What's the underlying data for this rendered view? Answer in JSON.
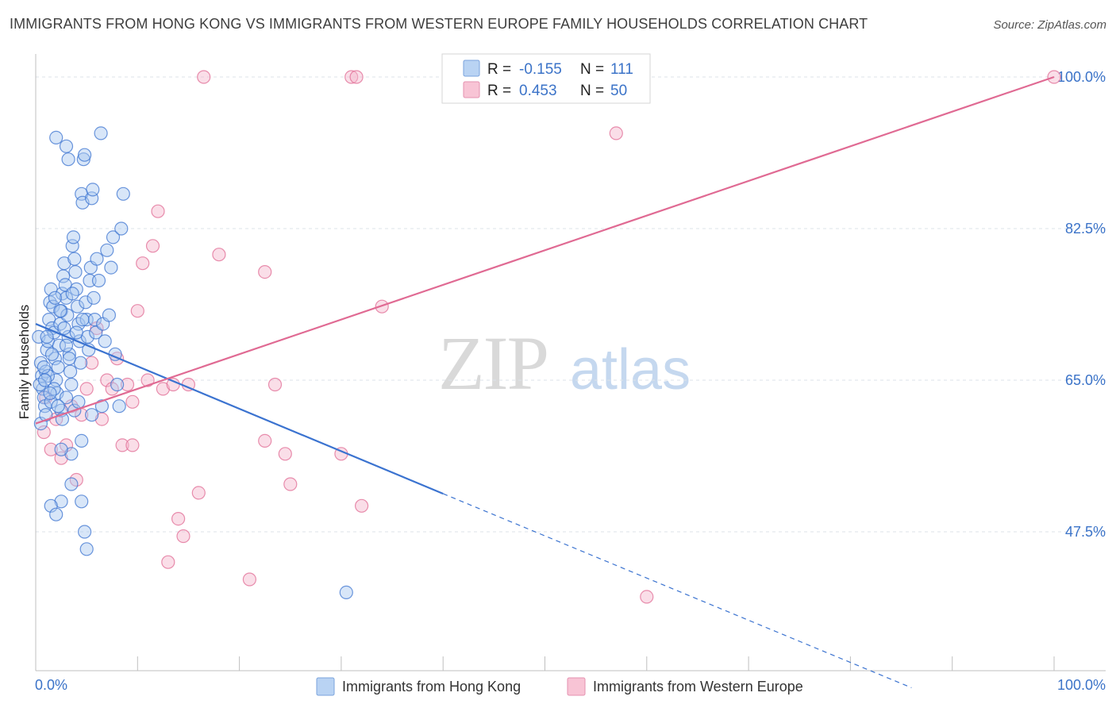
{
  "title": "IMMIGRANTS FROM HONG KONG VS IMMIGRANTS FROM WESTERN EUROPE FAMILY HOUSEHOLDS CORRELATION CHART",
  "source": "Source: ZipAtlas.com",
  "watermark": {
    "zip": "ZIP",
    "atlas": "atlas"
  },
  "colors": {
    "blue": "#3b73d0",
    "blue_fill": "#a9c8f0",
    "pink": "#e06a93",
    "pink_fill": "#f4b6cb",
    "grid": "#dde3ea",
    "tick": "#3b73c8"
  },
  "stats": {
    "r_label": "R =",
    "n_label": "N =",
    "blue": {
      "r": "-0.155",
      "n": "111"
    },
    "pink": {
      "r": "0.453",
      "n": "50"
    }
  },
  "chart_data": {
    "type": "scatter",
    "title": "IMMIGRANTS FROM HONG KONG VS IMMIGRANTS FROM WESTERN EUROPE FAMILY HOUSEHOLDS CORRELATION CHART",
    "xlabel": "",
    "ylabel": "Family Households",
    "xlim": [
      0,
      100
    ],
    "ylim": [
      30.0,
      102.5
    ],
    "x_tick_labels": [
      "0.0%",
      "100.0%"
    ],
    "y_ticks": [
      47.5,
      65.0,
      82.5,
      100.0
    ],
    "y_tick_labels": [
      "47.5%",
      "65.0%",
      "82.5%",
      "100.0%"
    ],
    "grid": true,
    "legend_position": "bottom",
    "series": [
      {
        "name": "Immigrants from Hong Kong",
        "color": "#3b73d0",
        "trend": {
          "x0": 0,
          "y0": 71.5,
          "x1": 40,
          "y1": 51.9,
          "dash_to_x": 86,
          "dash_to_y": 29.5
        },
        "points": [
          [
            0.3,
            70.0
          ],
          [
            0.5,
            67.0
          ],
          [
            0.6,
            65.5
          ],
          [
            0.7,
            64.0
          ],
          [
            0.8,
            63.0
          ],
          [
            0.9,
            62.0
          ],
          [
            1.0,
            66.0
          ],
          [
            1.1,
            68.5
          ],
          [
            1.2,
            69.5
          ],
          [
            1.3,
            72.0
          ],
          [
            1.4,
            74.0
          ],
          [
            1.5,
            75.5
          ],
          [
            1.6,
            71.0
          ],
          [
            1.7,
            73.5
          ],
          [
            1.8,
            70.5
          ],
          [
            1.9,
            67.5
          ],
          [
            2.0,
            65.0
          ],
          [
            2.1,
            63.5
          ],
          [
            2.2,
            66.5
          ],
          [
            2.3,
            69.0
          ],
          [
            2.4,
            71.5
          ],
          [
            2.5,
            73.0
          ],
          [
            2.6,
            75.0
          ],
          [
            2.7,
            77.0
          ],
          [
            2.8,
            78.5
          ],
          [
            2.9,
            76.0
          ],
          [
            3.0,
            74.5
          ],
          [
            3.1,
            72.5
          ],
          [
            3.2,
            70.0
          ],
          [
            3.3,
            68.0
          ],
          [
            3.4,
            66.0
          ],
          [
            3.5,
            64.5
          ],
          [
            3.6,
            80.5
          ],
          [
            3.7,
            81.5
          ],
          [
            3.8,
            79.0
          ],
          [
            3.9,
            77.5
          ],
          [
            4.0,
            75.5
          ],
          [
            4.1,
            73.5
          ],
          [
            4.2,
            71.5
          ],
          [
            4.3,
            69.5
          ],
          [
            4.4,
            67.0
          ],
          [
            4.5,
            86.5
          ],
          [
            4.6,
            85.5
          ],
          [
            4.7,
            90.5
          ],
          [
            4.8,
            91.0
          ],
          [
            4.9,
            74.0
          ],
          [
            5.0,
            72.0
          ],
          [
            5.1,
            70.0
          ],
          [
            5.2,
            68.5
          ],
          [
            5.3,
            76.5
          ],
          [
            5.4,
            78.0
          ],
          [
            5.5,
            86.0
          ],
          [
            5.6,
            87.0
          ],
          [
            5.7,
            74.5
          ],
          [
            5.8,
            72.0
          ],
          [
            5.9,
            70.5
          ],
          [
            6.0,
            79.0
          ],
          [
            6.2,
            76.5
          ],
          [
            6.4,
            93.5
          ],
          [
            6.6,
            71.5
          ],
          [
            6.8,
            69.5
          ],
          [
            7.0,
            80.0
          ],
          [
            7.2,
            72.5
          ],
          [
            7.4,
            78.0
          ],
          [
            7.6,
            81.5
          ],
          [
            7.8,
            68.0
          ],
          [
            8.0,
            64.5
          ],
          [
            8.2,
            62.0
          ],
          [
            8.4,
            82.5
          ],
          [
            8.6,
            86.5
          ],
          [
            2.0,
            93.0
          ],
          [
            3.0,
            92.0
          ],
          [
            3.2,
            90.5
          ],
          [
            4.5,
            58.0
          ],
          [
            2.5,
            51.0
          ],
          [
            1.5,
            50.5
          ],
          [
            2.0,
            49.5
          ],
          [
            3.5,
            53.0
          ],
          [
            4.5,
            51.0
          ],
          [
            4.8,
            47.5
          ],
          [
            5.0,
            45.5
          ],
          [
            0.5,
            60.0
          ],
          [
            1.0,
            61.0
          ],
          [
            1.5,
            62.5
          ],
          [
            2.5,
            61.5
          ],
          [
            3.0,
            63.0
          ],
          [
            3.5,
            56.5
          ],
          [
            2.5,
            57.0
          ],
          [
            1.2,
            65.5
          ],
          [
            0.8,
            66.5
          ],
          [
            1.8,
            64.0
          ],
          [
            2.2,
            62.0
          ],
          [
            0.4,
            64.5
          ],
          [
            0.9,
            65.0
          ],
          [
            1.4,
            63.5
          ],
          [
            2.6,
            60.5
          ],
          [
            3.8,
            61.5
          ],
          [
            4.2,
            62.5
          ],
          [
            5.5,
            61.0
          ],
          [
            6.5,
            62.0
          ],
          [
            3.0,
            69.0
          ],
          [
            3.3,
            67.5
          ],
          [
            1.6,
            68.0
          ],
          [
            1.1,
            70.0
          ],
          [
            2.8,
            71.0
          ],
          [
            4.0,
            70.5
          ],
          [
            4.6,
            72.0
          ],
          [
            2.4,
            73.0
          ],
          [
            1.9,
            74.5
          ],
          [
            3.6,
            75.0
          ],
          [
            30.5,
            40.5
          ]
        ]
      },
      {
        "name": "Immigrants from Western Europe",
        "color": "#e06a93",
        "trend": {
          "x0": 0,
          "y0": 60.0,
          "x1": 100,
          "y1": 100.0
        },
        "points": [
          [
            0.8,
            59.0
          ],
          [
            1.0,
            63.0
          ],
          [
            1.5,
            57.0
          ],
          [
            2.0,
            60.5
          ],
          [
            2.5,
            56.0
          ],
          [
            3.0,
            57.5
          ],
          [
            3.5,
            62.0
          ],
          [
            4.0,
            53.5
          ],
          [
            4.5,
            61.0
          ],
          [
            5.0,
            64.0
          ],
          [
            5.5,
            67.0
          ],
          [
            6.0,
            71.0
          ],
          [
            6.5,
            60.5
          ],
          [
            7.0,
            65.0
          ],
          [
            7.5,
            64.0
          ],
          [
            8.0,
            67.5
          ],
          [
            8.5,
            57.5
          ],
          [
            9.0,
            64.5
          ],
          [
            9.5,
            62.5
          ],
          [
            9.5,
            57.5
          ],
          [
            10.0,
            73.0
          ],
          [
            10.5,
            78.5
          ],
          [
            11.0,
            65.0
          ],
          [
            11.5,
            80.5
          ],
          [
            12.0,
            84.5
          ],
          [
            12.5,
            64.0
          ],
          [
            13.0,
            44.0
          ],
          [
            13.5,
            64.5
          ],
          [
            14.0,
            49.0
          ],
          [
            14.5,
            47.0
          ],
          [
            15.0,
            64.5
          ],
          [
            16.0,
            52.0
          ],
          [
            16.5,
            100.0
          ],
          [
            18.0,
            79.5
          ],
          [
            21.0,
            42.0
          ],
          [
            22.5,
            58.0
          ],
          [
            22.5,
            77.5
          ],
          [
            23.5,
            64.5
          ],
          [
            24.5,
            56.5
          ],
          [
            25.0,
            53.0
          ],
          [
            30.0,
            56.5
          ],
          [
            31.0,
            100.0
          ],
          [
            31.5,
            100.0
          ],
          [
            32.0,
            50.5
          ],
          [
            34.0,
            73.5
          ],
          [
            47.0,
            100.0
          ],
          [
            50.0,
            100.0
          ],
          [
            57.0,
            93.5
          ],
          [
            60.0,
            40.0
          ],
          [
            100.0,
            100.0
          ]
        ]
      }
    ]
  }
}
